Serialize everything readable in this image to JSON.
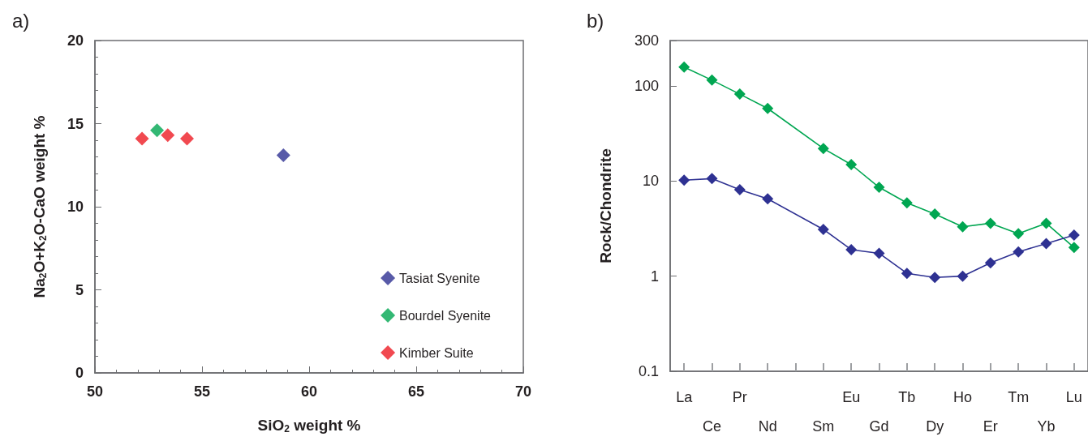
{
  "chart_data": [
    {
      "type": "scatter",
      "title": "a)",
      "xlabel": "SiO$_{2}$ weight %",
      "ylabel": "Na$_{2}$O+K$_{2}$O-CaO weight %",
      "xlim": [
        50,
        70
      ],
      "xticks": [
        50,
        55,
        60,
        65,
        70
      ],
      "ylim": [
        0,
        20
      ],
      "yticks": [
        0,
        5,
        10,
        15,
        20
      ],
      "grid": false,
      "legend": "bottom right",
      "marker": "diamond",
      "series": [
        {
          "name": "Tasiat Syenite",
          "color": "#2e3192",
          "x": [
            58.8
          ],
          "values": [
            13.1
          ]
        },
        {
          "name": "Bourdel Syenite",
          "color": "#00a651",
          "x": [
            52.9
          ],
          "values": [
            14.6
          ]
        },
        {
          "name": "Kimber Suite",
          "color": "#ed1c24",
          "x": [
            52.2,
            53.4,
            54.3
          ],
          "values": [
            14.1,
            14.3,
            14.1
          ]
        }
      ]
    },
    {
      "type": "line",
      "title": "b)",
      "ylabel": "Rock/Chondrite",
      "categories": [
        "La",
        "Ce",
        "Pr",
        "Nd",
        null,
        "Sm",
        "Eu",
        "Gd",
        "Tb",
        "Dy",
        "Ho",
        "Er",
        "Tm",
        "Yb",
        "Lu"
      ],
      "ylim": [
        0.1,
        300
      ],
      "yticks": [
        0.1,
        1,
        10,
        100,
        300
      ],
      "log": "y",
      "grid": false,
      "legend": false,
      "marker": "diamond",
      "line_style": "solid",
      "series": [
        {
          "color": "#00a651",
          "values": [
            158,
            115,
            82,
            58,
            null,
            22,
            14.9,
            8.6,
            5.9,
            4.5,
            3.3,
            3.6,
            2.8,
            3.6,
            2.0
          ]
        },
        {
          "color": "#2e3192",
          "values": [
            10.2,
            10.6,
            8.1,
            6.5,
            null,
            3.1,
            1.9,
            1.74,
            1.07,
            0.97,
            1.0,
            1.38,
            1.8,
            2.2,
            2.7
          ]
        }
      ]
    }
  ]
}
